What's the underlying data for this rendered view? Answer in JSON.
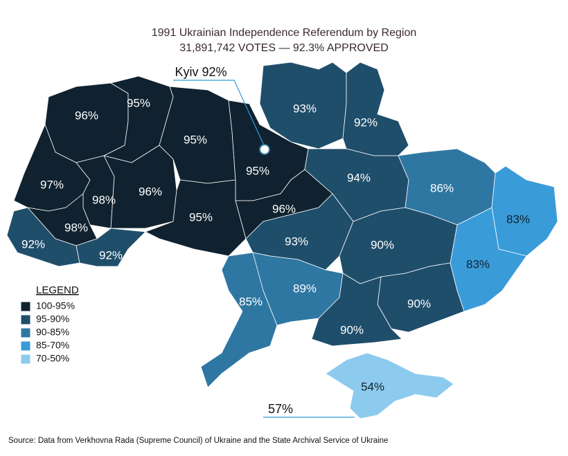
{
  "title": "1991 Ukrainian Independence Referendum by Region",
  "subtitle": "31,891,742 VOTES — 92.3% APPROVED",
  "callouts": {
    "kyiv": "Kyiv 92%",
    "sevastopol": "57%"
  },
  "legend": {
    "title": "LEGEND",
    "items": [
      {
        "label": "100-95%",
        "color": "#10222f"
      },
      {
        "label": "95-90%",
        "color": "#1f4e6b"
      },
      {
        "label": "90-85%",
        "color": "#2f77a3"
      },
      {
        "label": "85-70%",
        "color": "#3a9bd9"
      },
      {
        "label": "70-50%",
        "color": "#8ccbee"
      }
    ]
  },
  "regions": [
    {
      "label": "96%",
      "color": "#10222f"
    },
    {
      "label": "95%",
      "color": "#10222f"
    },
    {
      "label": "95%",
      "color": "#10222f"
    },
    {
      "label": "95%",
      "color": "#10222f"
    },
    {
      "label": "93%",
      "color": "#1f4e6b"
    },
    {
      "label": "92%",
      "color": "#1f4e6b"
    },
    {
      "label": "97%",
      "color": "#10222f"
    },
    {
      "label": "98%",
      "color": "#10222f"
    },
    {
      "label": "96%",
      "color": "#10222f"
    },
    {
      "label": "98%",
      "color": "#10222f"
    },
    {
      "label": "92%",
      "color": "#1f4e6b"
    },
    {
      "label": "92%",
      "color": "#1f4e6b"
    },
    {
      "label": "95%",
      "color": "#10222f"
    },
    {
      "label": "96%",
      "color": "#10222f"
    },
    {
      "label": "94%",
      "color": "#1f4e6b"
    },
    {
      "label": "86%",
      "color": "#2f77a3"
    },
    {
      "label": "83%",
      "color": "#3a9bd9"
    },
    {
      "label": "83%",
      "color": "#3a9bd9"
    },
    {
      "label": "93%",
      "color": "#1f4e6b"
    },
    {
      "label": "90%",
      "color": "#1f4e6b"
    },
    {
      "label": "85%",
      "color": "#2f77a3"
    },
    {
      "label": "89%",
      "color": "#2f77a3"
    },
    {
      "label": "90%",
      "color": "#1f4e6b"
    },
    {
      "label": "90%",
      "color": "#1f4e6b"
    },
    {
      "label": "54%",
      "color": "#8ccbee"
    }
  ],
  "source": "Source: Data from Verkhovna Rada (Supreme Council) of Ukraine and the State Archival Service of Ukraine"
}
